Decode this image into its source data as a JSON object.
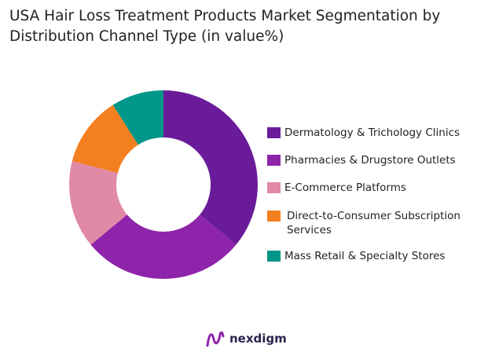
{
  "chart_data": {
    "type": "pie",
    "donut": true,
    "title": "USA Hair Loss Treatment Products Market Segmentation by Distribution Channel Type (in value%)",
    "categories": [
      "Dermatology & Trichology Clinics",
      "Pharmacies & Drugstore Outlets",
      "E-Commerce Platforms",
      "Direct-to-Consumer Subscription Services",
      "Mass Retail & Specialty Stores"
    ],
    "values": [
      36,
      28,
      15,
      12,
      9
    ],
    "colors": [
      "#6a1b9a",
      "#8e24aa",
      "#e08aa6",
      "#f47f20",
      "#009688"
    ],
    "legend_position": "right"
  },
  "legend_lines": [
    [
      "Dermatology & Trichology Clinics"
    ],
    [
      "Pharmacies & Drugstore Outlets"
    ],
    [
      "E-Commerce Platforms"
    ],
    [
      "Direct-to-Consumer Subscription",
      "Services"
    ],
    [
      "Mass Retail & Specialty Stores"
    ]
  ],
  "logo": {
    "text": "nexdigm"
  }
}
